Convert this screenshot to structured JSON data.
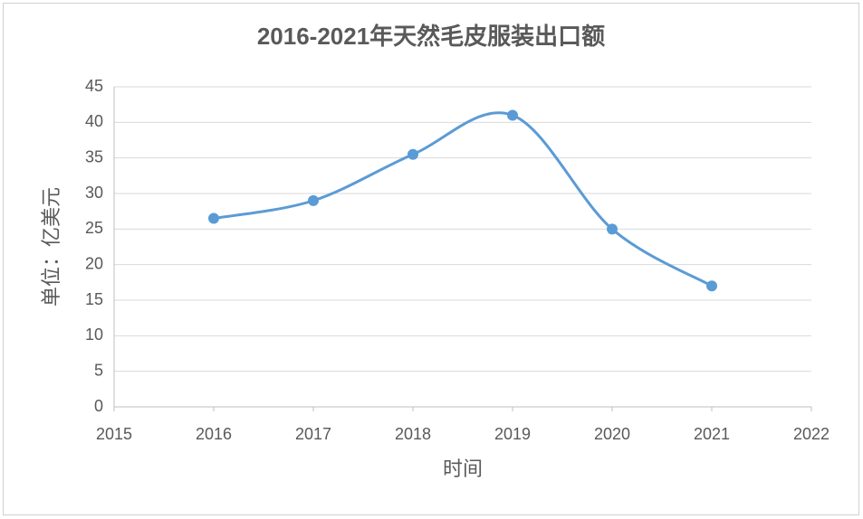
{
  "chart_data": {
    "type": "line",
    "title": "2016-2021年天然毛皮服装出口额",
    "x_label": "时间",
    "y_label": "单位：亿美元",
    "series": [
      {
        "name": "出口额",
        "color": "#5b9bd5",
        "x": [
          2016,
          2017,
          2018,
          2019,
          2020,
          2021
        ],
        "values": [
          26.5,
          29,
          35.5,
          41,
          25,
          17
        ]
      }
    ],
    "xlim": [
      2015,
      2022
    ],
    "xticks": [
      2015,
      2016,
      2017,
      2018,
      2019,
      2020,
      2021,
      2022
    ],
    "ylim": [
      0,
      45
    ],
    "yticks": [
      0,
      5,
      10,
      15,
      20,
      25,
      30,
      35,
      40,
      45
    ],
    "grid": true,
    "smooth": true
  }
}
